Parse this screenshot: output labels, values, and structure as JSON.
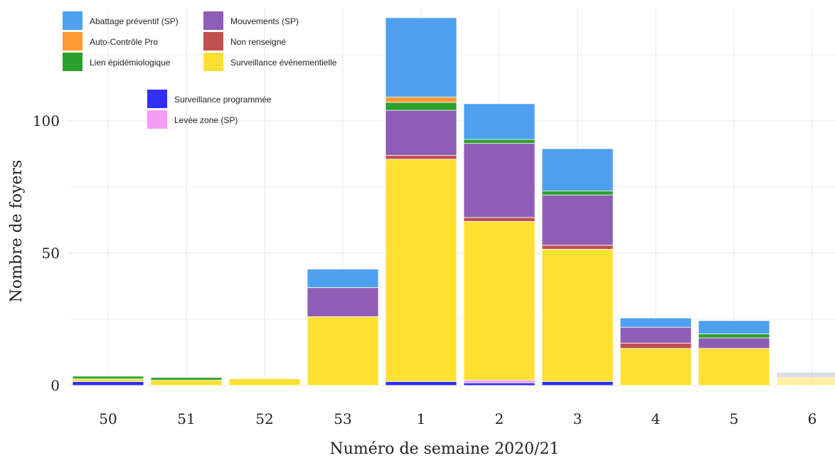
{
  "chart_data": {
    "type": "bar",
    "stacked": true,
    "title": "",
    "xlabel": "Numéro de semaine 2020/21",
    "ylabel": "Nombre de foyers",
    "ylim": [
      0,
      140
    ],
    "yticks": [
      0,
      50,
      100
    ],
    "grid": true,
    "categories": [
      "50",
      "51",
      "52",
      "53",
      "1",
      "2",
      "3",
      "4",
      "5",
      "6"
    ],
    "series": [
      {
        "name": "Surveillance programmée",
        "color": "#2f2ff5",
        "values": [
          1.5,
          0,
          0,
          0,
          1.5,
          1,
          1.5,
          0,
          0,
          0
        ]
      },
      {
        "name": "Levée zone (SP)",
        "color": "#f79cf5",
        "values": [
          0,
          0,
          0,
          0,
          0,
          1,
          0,
          0,
          0,
          0
        ]
      },
      {
        "name": "Surveillance événementielle",
        "color": "#fde032",
        "values": [
          1,
          2,
          2.5,
          26,
          84,
          60,
          50,
          14,
          14,
          3
        ]
      },
      {
        "name": "Non renseigné",
        "color": "#c0504d",
        "values": [
          0,
          0,
          0,
          0,
          1.5,
          1.5,
          1.5,
          2,
          0,
          0.5
        ]
      },
      {
        "name": "Mouvements (SP)",
        "color": "#8e5db5",
        "values": [
          0,
          0,
          0,
          11,
          17,
          28,
          19,
          6,
          4,
          0.5
        ]
      },
      {
        "name": "Lien épidémiologique",
        "color": "#2ca02c",
        "values": [
          1,
          1,
          0,
          0,
          3,
          1.5,
          1.5,
          0,
          1.5,
          0.5
        ]
      },
      {
        "name": "Auto-Contrôle Pro",
        "color": "#ff9933",
        "values": [
          0,
          0,
          0,
          0,
          2,
          0,
          0,
          0,
          0,
          0
        ]
      },
      {
        "name": "Abattage préventif (SP)",
        "color": "#4ea0ee",
        "values": [
          0,
          0,
          0,
          7,
          30,
          13.5,
          16,
          3.5,
          5,
          0.5
        ]
      }
    ],
    "legend": {
      "placement": "top-left",
      "columns": [
        [
          "Abattage préventif (SP)",
          "Auto-Contrôle Pro",
          "Lien épidémiologique"
        ],
        [
          "Mouvements (SP)",
          "Non renseigné",
          "Surveillance événementielle"
        ],
        [
          "Surveillance programmée",
          "Levée zone (SP)"
        ]
      ]
    }
  }
}
